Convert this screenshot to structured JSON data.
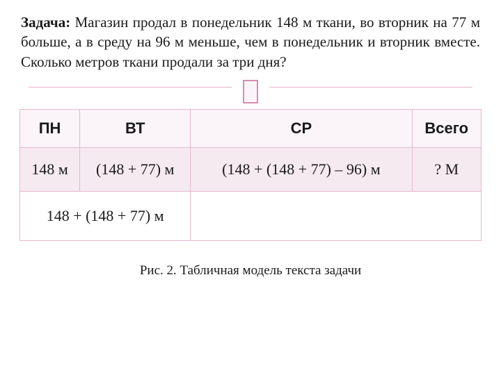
{
  "problem": {
    "label": "Задача:",
    "text": " Магазин продал в понедельник 148 м ткани, во вторник на 77 м больше, а в среду на 96 м меньше, чем в понедельник и вторник вместе. Сколько метров ткани продали за три дня?"
  },
  "table": {
    "headers": {
      "c1": "ПН",
      "c2": "ВТ",
      "c3": "СР",
      "c4": "Всего"
    },
    "row_values": {
      "pn": "148 м",
      "vt": "(148 + 77) м",
      "sr": "(148 + (148 + 77) – 96) м",
      "total": "? М"
    },
    "row_sum": {
      "span12": "148 + (148 + 77) м",
      "span34": ""
    },
    "colors": {
      "header_bg": "#fbf4f8",
      "values_bg": "#f6eaf1",
      "border": "#e6b7cd"
    }
  },
  "caption": "Рис. 2. Табличная модель текста задачи"
}
